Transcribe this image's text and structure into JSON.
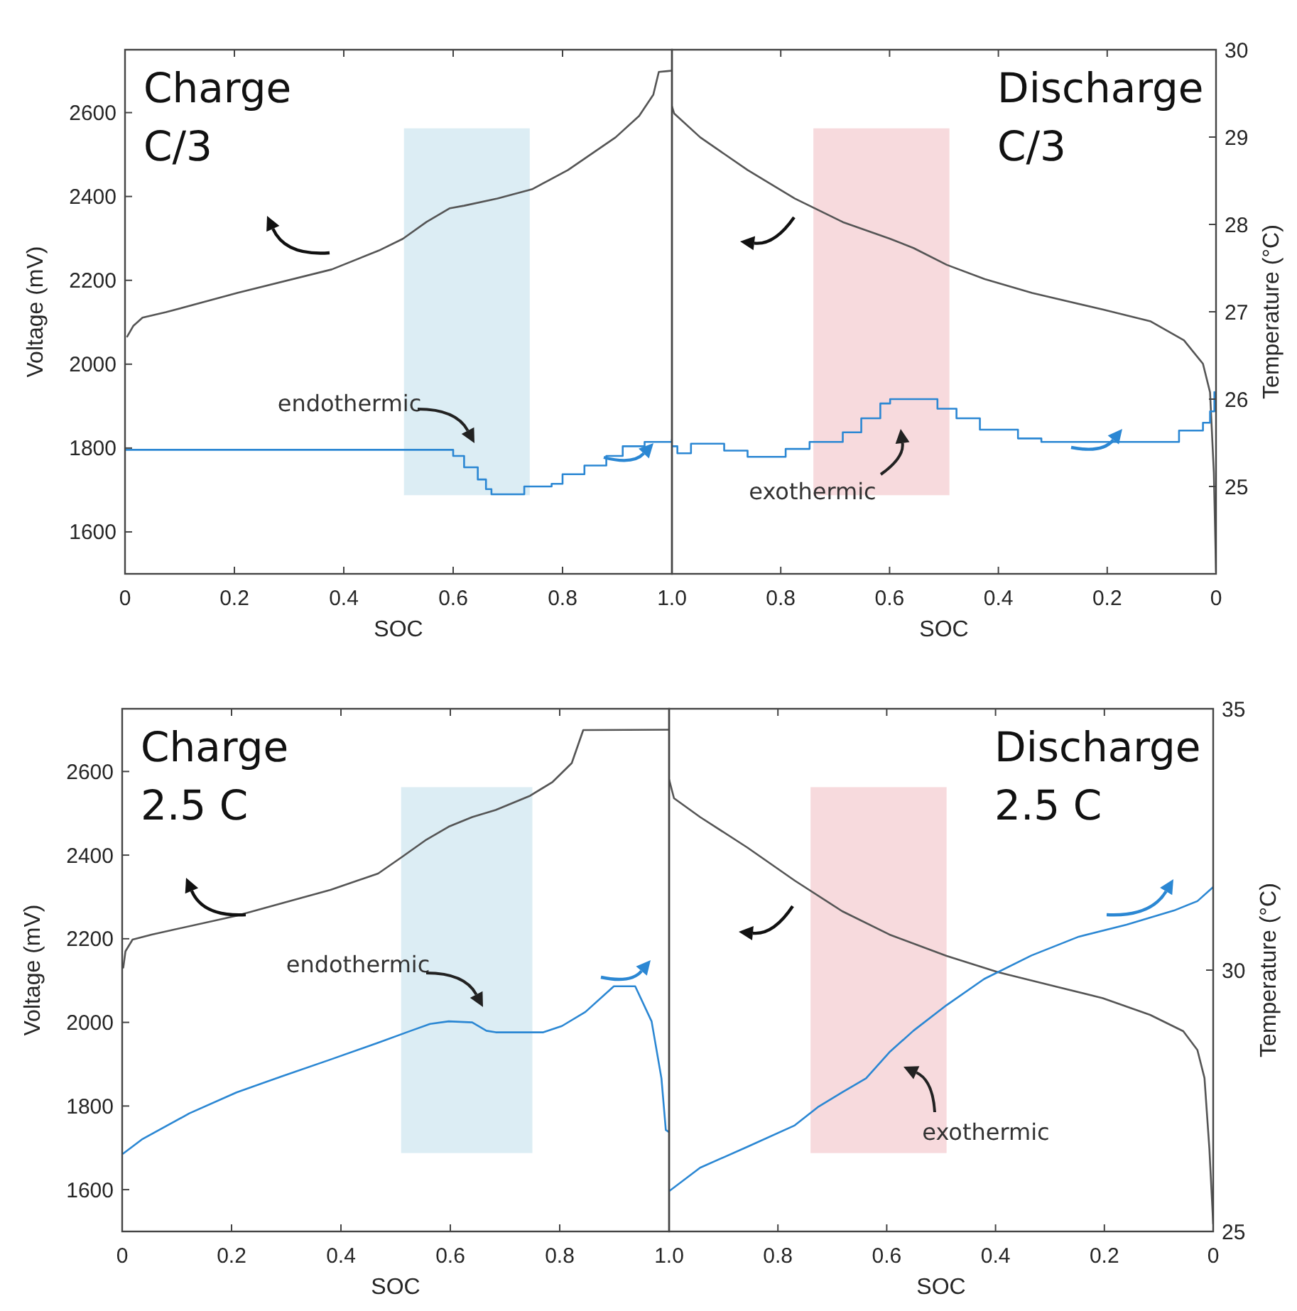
{
  "chart_data": [
    {
      "type": "line",
      "title": "Charge\nC/3",
      "xlabel": "SOC",
      "ylabel": "Voltage (mV)",
      "xlim": [
        0,
        1
      ],
      "xticks": [
        0,
        0.2,
        0.4,
        0.6,
        0.8
      ],
      "ylim": [
        1500,
        2750
      ],
      "yticks": [
        1600,
        1800,
        2000,
        2200,
        2400,
        2600
      ],
      "y2lim": [
        24,
        30
      ],
      "tick_labels": "xy",
      "bands": [
        {
          "axis": "x",
          "from": 0.51,
          "to": 0.74,
          "color": "#dcedf4"
        }
      ],
      "annotations": [
        "endothermic"
      ],
      "series": [
        {
          "color": "#555555",
          "x": [
            0.004,
            0.015,
            0.032,
            0.075,
            0.205,
            0.378,
            0.464,
            0.508,
            0.551,
            0.594,
            0.62,
            0.681,
            0.744,
            0.81,
            0.897,
            0.94,
            0.966,
            0.976,
            0.992,
            1.0
          ],
          "values": [
            2066,
            2091,
            2111,
            2124,
            2170,
            2226,
            2271,
            2299,
            2339,
            2372,
            2378,
            2395,
            2417,
            2463,
            2541,
            2592,
            2643,
            2697,
            2699,
            2700
          ]
        },
        {
          "type": "step",
          "axis": "y2",
          "color": "#2b87d3",
          "x": [
            0,
            0.58,
            0.6,
            0.62,
            0.645,
            0.66,
            0.67,
            0.72,
            0.73,
            0.78,
            0.8,
            0.84,
            0.88,
            0.91,
            0.95,
            1.0
          ],
          "values": [
            25.42,
            25.42,
            25.35,
            25.22,
            25.08,
            24.97,
            24.91,
            24.91,
            25.0,
            25.03,
            25.14,
            25.24,
            25.35,
            25.46,
            25.51,
            25.54
          ]
        }
      ]
    },
    {
      "type": "line",
      "title": "Discharge\nC/3",
      "xlabel": "SOC",
      "y2label": "Temperature (°C)",
      "xlim": [
        1,
        0
      ],
      "xticks": [
        {
          "value": 1,
          "label": "1.0"
        },
        0.8,
        0.6,
        0.4,
        0.2,
        0
      ],
      "ylim": [
        1500,
        2750
      ],
      "y2lim": [
        24,
        30
      ],
      "y2ticks": [
        25,
        26,
        27,
        28,
        29,
        30
      ],
      "tick_labels": "xy2",
      "bands": [
        {
          "axis": "x",
          "from": 0.74,
          "to": 0.49,
          "color": "#f7dadd"
        }
      ],
      "annotations": [
        "exothermic"
      ],
      "series": [
        {
          "color": "#555555",
          "x": [
            1.0,
            0.996,
            0.948,
            0.861,
            0.774,
            0.686,
            0.599,
            0.556,
            0.495,
            0.425,
            0.338,
            0.207,
            0.12,
            0.059,
            0.024,
            0.011,
            0.004,
            0
          ],
          "values": [
            2615,
            2598,
            2541,
            2463,
            2395,
            2339,
            2299,
            2277,
            2237,
            2203,
            2170,
            2130,
            2102,
            2057,
            2001,
            1933,
            1741,
            1505
          ]
        },
        {
          "type": "step",
          "axis": "y2",
          "color": "#2b87d3",
          "x": [
            1.0,
            0.99,
            0.965,
            0.904,
            0.861,
            0.791,
            0.747,
            0.686,
            0.652,
            0.617,
            0.599,
            0.547,
            0.512,
            0.477,
            0.434,
            0.364,
            0.321,
            0.164,
            0.068,
            0.024,
            0.011,
            0.003
          ],
          "values": [
            25.46,
            25.38,
            25.49,
            25.41,
            25.34,
            25.43,
            25.51,
            25.62,
            25.78,
            25.95,
            26.0,
            26.0,
            25.89,
            25.78,
            25.65,
            25.55,
            25.51,
            25.51,
            25.64,
            25.73,
            25.86,
            26.08
          ]
        }
      ]
    },
    {
      "type": "line",
      "title": "Charge\n2.5 C",
      "xlabel": "SOC",
      "ylabel": "Voltage (mV)",
      "xlim": [
        0,
        1
      ],
      "xticks": [
        0,
        0.2,
        0.4,
        0.6,
        0.8
      ],
      "ylim": [
        1500,
        2750
      ],
      "yticks": [
        1600,
        1800,
        2000,
        2200,
        2400,
        2600
      ],
      "y2lim": [
        25,
        35
      ],
      "tick_labels": "xy",
      "bands": [
        {
          "axis": "x",
          "from": 0.51,
          "to": 0.75,
          "color": "#dcedf4"
        }
      ],
      "annotations": [
        "endothermic"
      ],
      "series": [
        {
          "color": "#555555",
          "x": [
            0.002,
            0.006,
            0.019,
            0.054,
            0.209,
            0.381,
            0.468,
            0.511,
            0.554,
            0.597,
            0.64,
            0.683,
            0.746,
            0.787,
            0.822,
            0.843,
            1.0
          ],
          "values": [
            2131,
            2170,
            2198,
            2210,
            2255,
            2317,
            2356,
            2395,
            2435,
            2468,
            2491,
            2508,
            2542,
            2575,
            2620,
            2699,
            2700
          ]
        },
        {
          "type": "line",
          "axis": "y2",
          "color": "#2b87d3",
          "x": [
            0.002,
            0.036,
            0.123,
            0.209,
            0.295,
            0.381,
            0.468,
            0.528,
            0.563,
            0.597,
            0.64,
            0.666,
            0.683,
            0.77,
            0.804,
            0.847,
            0.899,
            0.938,
            0.968,
            0.986,
            0.994,
            1.0
          ],
          "values": [
            26.49,
            26.76,
            27.26,
            27.66,
            27.98,
            28.29,
            28.61,
            28.84,
            28.97,
            29.02,
            29.0,
            28.84,
            28.81,
            28.81,
            28.93,
            29.2,
            29.69,
            29.69,
            29.02,
            27.93,
            26.94,
            26.9
          ]
        }
      ]
    },
    {
      "type": "line",
      "title": "Discharge\n2.5 C",
      "xlabel": "SOC",
      "y2label": "Temperature (°C)",
      "xlim": [
        1,
        0
      ],
      "xticks": [
        {
          "value": 1,
          "label": "1.0"
        },
        0.8,
        0.6,
        0.4,
        0.2,
        0
      ],
      "ylim": [
        1500,
        2750
      ],
      "y2lim": [
        25,
        35
      ],
      "y2ticks": [
        25,
        30,
        35
      ],
      "tick_labels": "xy2",
      "bands": [
        {
          "axis": "x",
          "from": 0.74,
          "to": 0.49,
          "color": "#f7dadd"
        }
      ],
      "annotations": [
        "exothermic"
      ],
      "series": [
        {
          "color": "#555555",
          "x": [
            1.0,
            0.991,
            0.943,
            0.856,
            0.769,
            0.682,
            0.595,
            0.49,
            0.395,
            0.29,
            0.203,
            0.116,
            0.055,
            0.029,
            0.016,
            0.007,
            0
          ],
          "values": [
            2581,
            2536,
            2491,
            2418,
            2339,
            2266,
            2210,
            2159,
            2120,
            2086,
            2058,
            2018,
            1979,
            1934,
            1867,
            1698,
            1518
          ]
        },
        {
          "type": "line",
          "axis": "y2",
          "color": "#2b87d3",
          "x": [
            1.0,
            0.943,
            0.856,
            0.769,
            0.725,
            0.682,
            0.638,
            0.595,
            0.551,
            0.49,
            0.421,
            0.334,
            0.247,
            0.159,
            0.072,
            0.029,
            0
          ],
          "values": [
            25.77,
            26.22,
            26.62,
            27.03,
            27.39,
            27.66,
            27.93,
            28.43,
            28.84,
            29.33,
            29.83,
            30.28,
            30.64,
            30.87,
            31.14,
            31.32,
            31.59
          ]
        }
      ]
    }
  ]
}
